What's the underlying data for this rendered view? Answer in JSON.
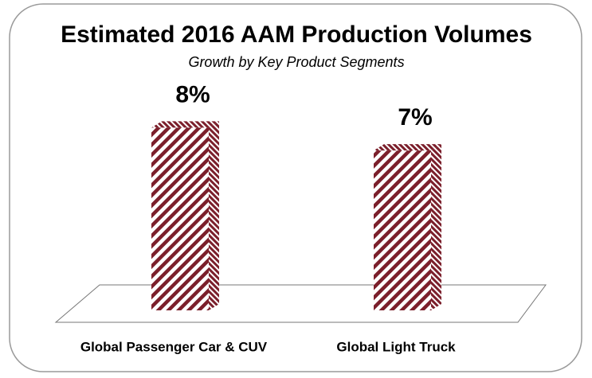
{
  "chart_data": {
    "type": "bar3d",
    "title": "Estimated 2016 AAM Production Volumes",
    "subtitle": "Growth by Key Product Segments",
    "categories": [
      "Global Passenger Car & CUV",
      "Global Light Truck"
    ],
    "values": [
      8,
      7
    ],
    "value_labels": [
      "8%",
      "7%"
    ],
    "color": "#7b1f2b"
  }
}
